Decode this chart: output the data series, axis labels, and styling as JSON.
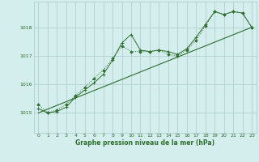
{
  "title": "Graphe pression niveau de la mer (hPa)",
  "bg_color": "#d4eeed",
  "grid_color": "#b0cfcf",
  "line_color": "#2d6e2d",
  "xlim": [
    -0.5,
    23.5
  ],
  "ylim": [
    1014.3,
    1018.9
  ],
  "yticks": [
    1015,
    1016,
    1017,
    1018
  ],
  "xticks": [
    0,
    1,
    2,
    3,
    4,
    5,
    6,
    7,
    8,
    9,
    10,
    11,
    12,
    13,
    14,
    15,
    16,
    17,
    18,
    19,
    20,
    21,
    22,
    23
  ],
  "series1_x": [
    0,
    1,
    2,
    3,
    4,
    5,
    6,
    7,
    8,
    9,
    10,
    11,
    12,
    13,
    14,
    15,
    16,
    17,
    18,
    19,
    20,
    21,
    22,
    23
  ],
  "series1_y": [
    1015.15,
    1015.0,
    1015.05,
    1015.2,
    1015.55,
    1015.8,
    1016.05,
    1016.35,
    1016.85,
    1017.45,
    1017.75,
    1017.2,
    1017.15,
    1017.2,
    1017.15,
    1017.05,
    1017.25,
    1017.65,
    1018.1,
    1018.55,
    1018.45,
    1018.55,
    1018.5,
    1018.0
  ],
  "series2_x": [
    0,
    1,
    2,
    3,
    4,
    5,
    6,
    7,
    8,
    9,
    10,
    11,
    12,
    13,
    14,
    15,
    16,
    17,
    18,
    19,
    20,
    21,
    22,
    23
  ],
  "series2_y": [
    1015.3,
    1015.0,
    1015.1,
    1015.3,
    1015.6,
    1015.9,
    1016.2,
    1016.5,
    1016.9,
    1017.35,
    1017.15,
    1017.15,
    1017.15,
    1017.2,
    1017.05,
    1017.0,
    1017.2,
    1017.55,
    1018.05,
    1018.55,
    1018.45,
    1018.55,
    1018.5,
    1018.0
  ],
  "series3_x": [
    0,
    23
  ],
  "series3_y": [
    1015.0,
    1018.0
  ]
}
